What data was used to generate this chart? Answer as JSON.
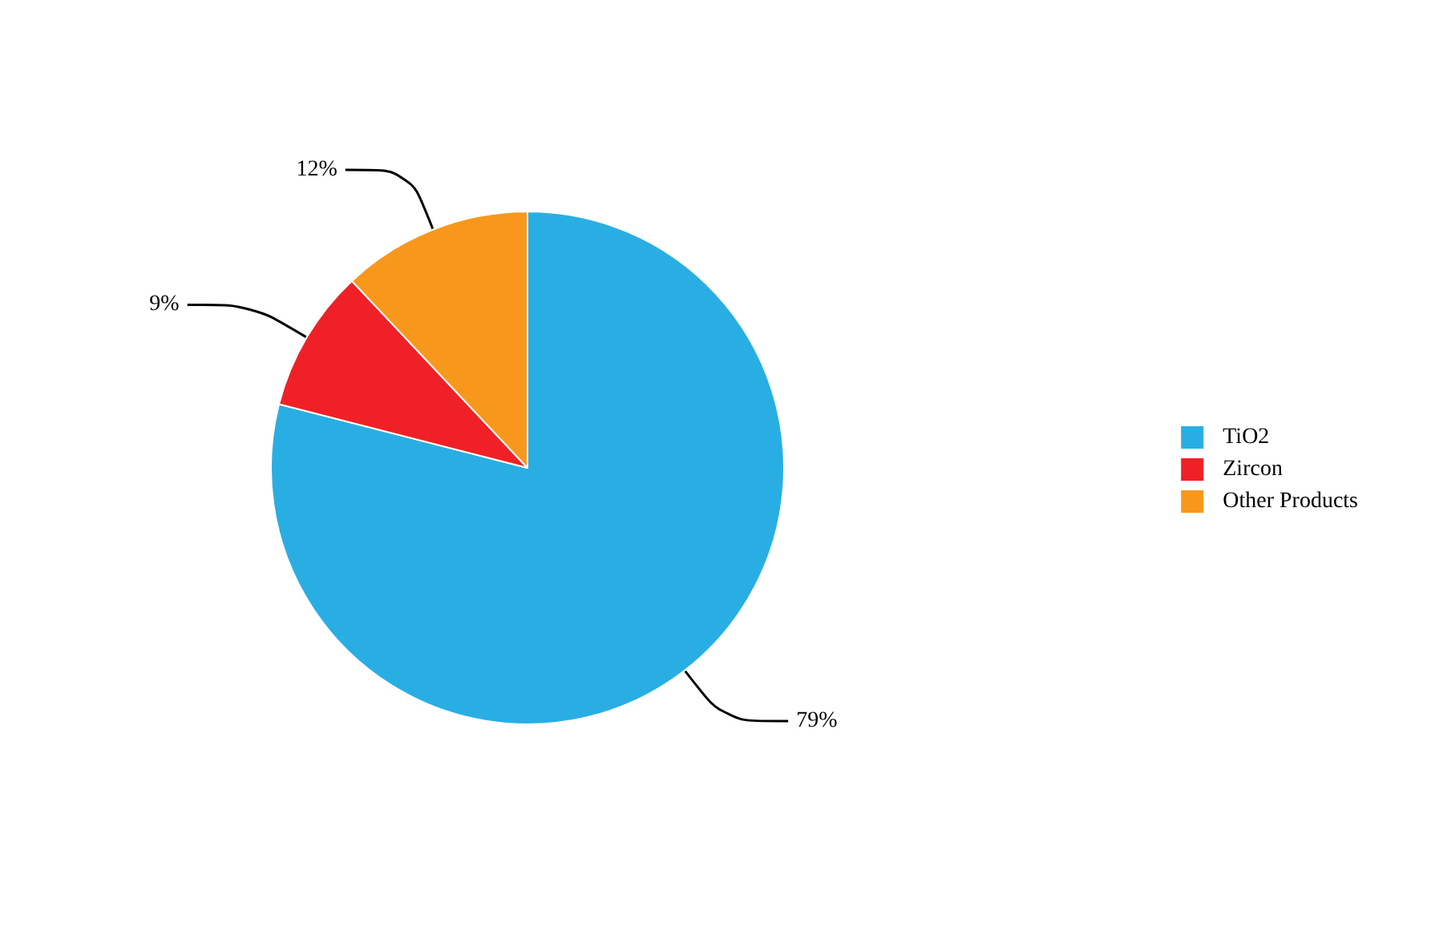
{
  "chart_data": {
    "type": "pie",
    "categories": [
      "TiO2",
      "Zircon",
      "Other Products"
    ],
    "values": [
      79,
      9,
      12
    ],
    "colors": [
      "#29aee3",
      "#ef2126",
      "#f7981d"
    ],
    "value_labels": [
      "79%",
      "9%",
      "12%"
    ],
    "legend": "right"
  }
}
